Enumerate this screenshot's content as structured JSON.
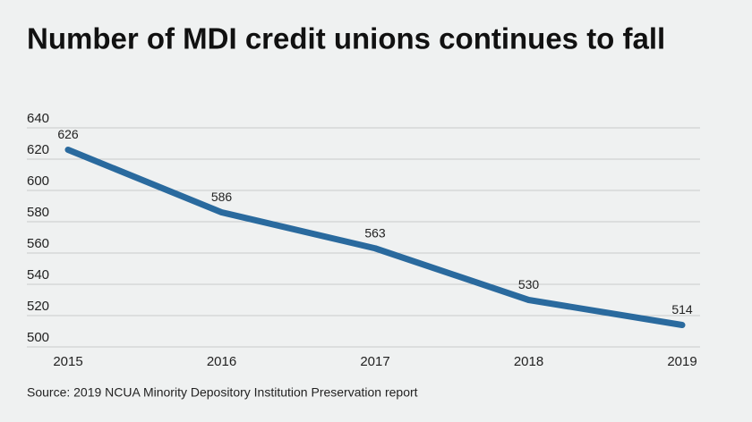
{
  "chart_data": {
    "type": "line",
    "title": "Number of MDI credit unions continues to fall",
    "categories": [
      "2015",
      "2016",
      "2017",
      "2018",
      "2019"
    ],
    "values": [
      626,
      586,
      563,
      530,
      514
    ],
    "color": "#2a6a9e",
    "ylim": [
      500,
      640
    ],
    "yticks": [
      500,
      520,
      540,
      560,
      580,
      600,
      620,
      640
    ],
    "grid": true,
    "source": "Source: 2019 NCUA Minority Depository Institution Preservation report"
  }
}
